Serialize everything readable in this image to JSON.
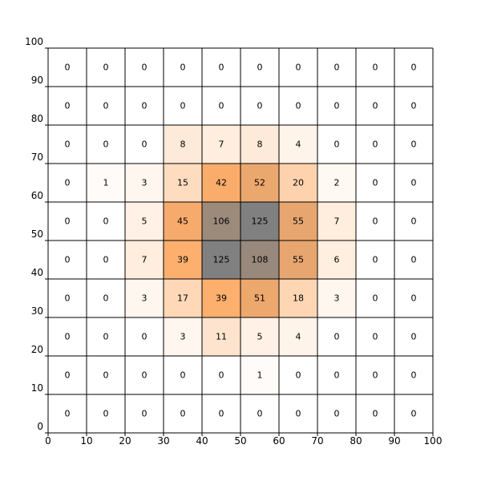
{
  "chart_data": {
    "type": "heatmap",
    "title": "",
    "xlabel": "",
    "ylabel": "",
    "xlim": [
      0,
      100
    ],
    "ylim": [
      0,
      100
    ],
    "x_ticks": [
      "0",
      "10",
      "20",
      "30",
      "40",
      "50",
      "60",
      "70",
      "80",
      "90",
      "100"
    ],
    "y_ticks": [
      "0",
      "10",
      "20",
      "30",
      "40",
      "50",
      "60",
      "70",
      "80",
      "90",
      "100"
    ],
    "grid": true,
    "bin_size": 10,
    "colormap": "light-to-orange-to-gray",
    "vmax": 125,
    "colors": {
      "low": "#ffffff",
      "mid": "#fdae6b",
      "high": "#808080",
      "grid_line": "#000000",
      "text": "#000000"
    },
    "rows": [
      [
        0,
        0,
        0,
        0,
        0,
        0,
        0,
        0,
        0,
        0
      ],
      [
        0,
        0,
        0,
        0,
        0,
        0,
        0,
        0,
        0,
        0
      ],
      [
        0,
        0,
        0,
        8,
        7,
        8,
        4,
        0,
        0,
        0
      ],
      [
        0,
        1,
        3,
        15,
        42,
        52,
        20,
        2,
        0,
        0
      ],
      [
        0,
        0,
        5,
        45,
        106,
        125,
        55,
        7,
        0,
        0
      ],
      [
        0,
        0,
        7,
        39,
        125,
        108,
        55,
        6,
        0,
        0
      ],
      [
        0,
        0,
        3,
        17,
        39,
        51,
        18,
        3,
        0,
        0
      ],
      [
        0,
        0,
        0,
        3,
        11,
        5,
        4,
        0,
        0,
        0
      ],
      [
        0,
        0,
        0,
        0,
        0,
        1,
        0,
        0,
        0,
        0
      ],
      [
        0,
        0,
        0,
        0,
        0,
        0,
        0,
        0,
        0,
        0
      ]
    ]
  }
}
